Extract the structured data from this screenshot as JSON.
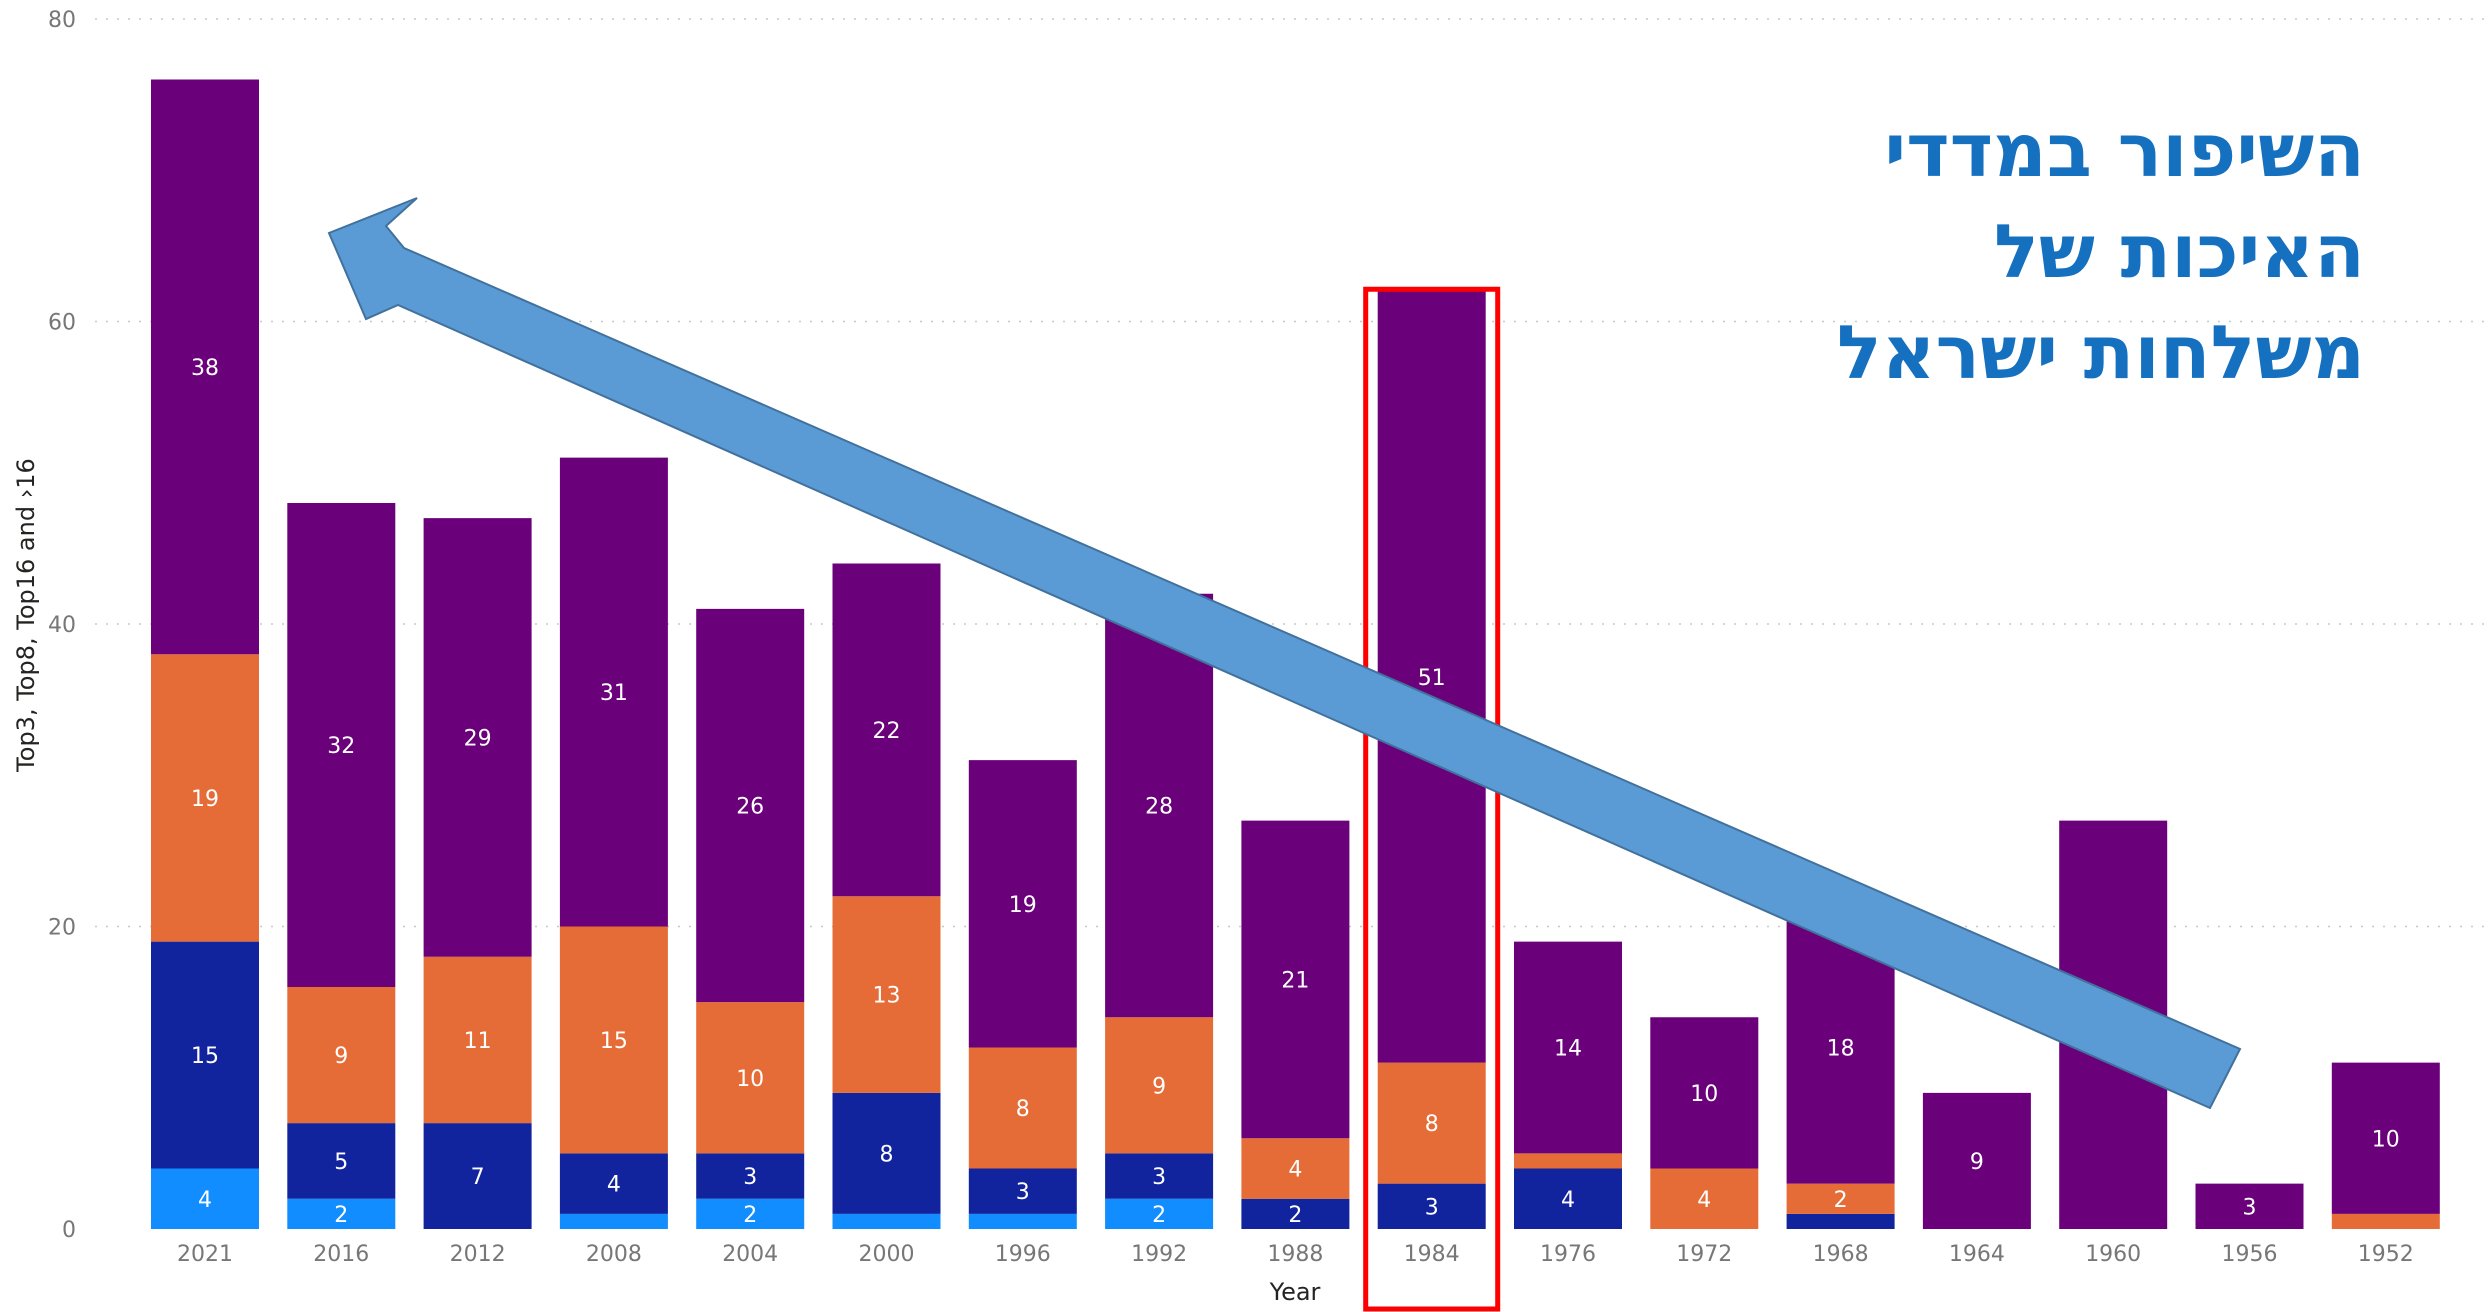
{
  "chart_data": {
    "type": "bar",
    "stacked": true,
    "categories": [
      "2021",
      "2016",
      "2012",
      "2008",
      "2004",
      "2000",
      "1996",
      "1992",
      "1988",
      "1984",
      "1976",
      "1972",
      "1968",
      "1964",
      "1960",
      "1956",
      "1952"
    ],
    "series": [
      {
        "values": [
          4,
          2,
          0,
          1,
          2,
          1,
          1,
          2,
          0,
          0,
          0,
          0,
          0,
          0,
          0,
          0,
          0
        ],
        "color": "#118DFF"
      },
      {
        "values": [
          15,
          5,
          7,
          4,
          3,
          8,
          3,
          3,
          2,
          3,
          4,
          0,
          1,
          0,
          0,
          0,
          0
        ],
        "color": "#12239E"
      },
      {
        "values": [
          19,
          9,
          11,
          15,
          10,
          13,
          8,
          9,
          4,
          8,
          1,
          4,
          2,
          0,
          0,
          0,
          1
        ],
        "color": "#E66C37"
      },
      {
        "values": [
          38,
          32,
          29,
          31,
          26,
          22,
          19,
          28,
          21,
          51,
          14,
          10,
          18,
          9,
          27,
          3,
          10
        ],
        "color": "#6B007B"
      }
    ],
    "xlabel": "Year",
    "ylabel": "Top3, Top8, Top16 and ›16",
    "ylim": [
      0,
      80
    ],
    "yticks": [
      0,
      20,
      40,
      60,
      80
    ],
    "grid": true,
    "highlight_category": "1984",
    "annotation_text": [
      "השיפור במדדי",
      "האיכות של",
      "משלחות ישראל"
    ]
  },
  "colors": {
    "arrow_fill": "#5B9BD5",
    "arrow_stroke": "#41719C",
    "highlight": "#FF0000",
    "annotation": "#1570C0"
  }
}
